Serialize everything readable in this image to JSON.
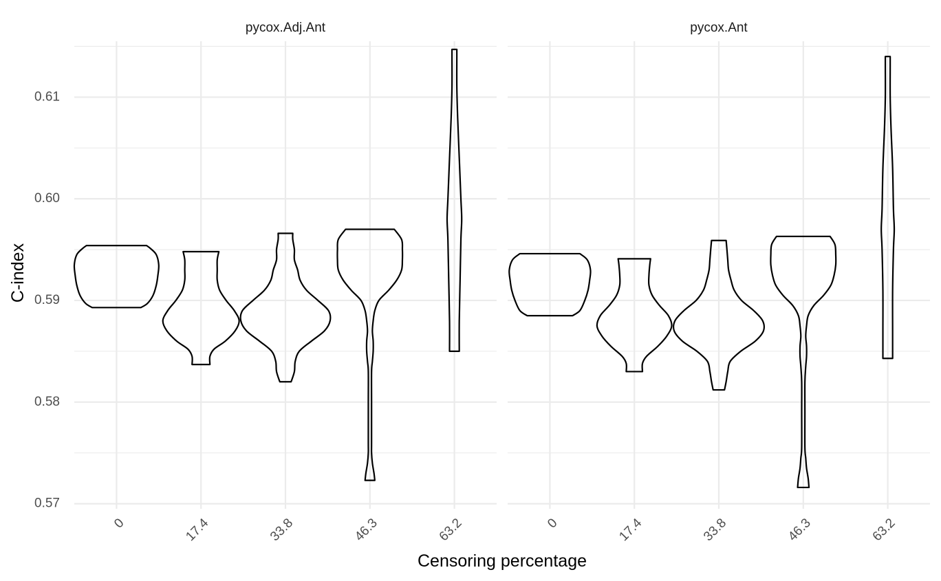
{
  "chart_data": {
    "type": "violin",
    "xlabel": "Censoring percentage",
    "ylabel": "C-index",
    "categories": [
      "0",
      "17.4",
      "33.8",
      "46.3",
      "63.2"
    ],
    "ylim": [
      0.5695,
      0.6155
    ],
    "yticks": [
      0.57,
      0.58,
      0.59,
      0.6,
      0.61
    ],
    "ytick_labels": [
      "0.57",
      "0.58",
      "0.59",
      "0.60",
      "0.61"
    ],
    "grid": true,
    "panels": [
      {
        "title": "pycox.Adj.Ant",
        "violins": [
          {
            "category": "0",
            "profile": [
              [
                0.5893,
                0.3
              ],
              [
                0.5897,
                0.38
              ],
              [
                0.5905,
                0.45
              ],
              [
                0.5915,
                0.49
              ],
              [
                0.5925,
                0.51
              ],
              [
                0.5935,
                0.52
              ],
              [
                0.5945,
                0.49
              ],
              [
                0.5951,
                0.42
              ],
              [
                0.5954,
                0.37
              ]
            ]
          },
          {
            "category": "17.4",
            "profile": [
              [
                0.5837,
                0.11
              ],
              [
                0.5845,
                0.11
              ],
              [
                0.5852,
                0.16
              ],
              [
                0.586,
                0.3
              ],
              [
                0.587,
                0.42
              ],
              [
                0.588,
                0.47
              ],
              [
                0.589,
                0.41
              ],
              [
                0.59,
                0.31
              ],
              [
                0.591,
                0.23
              ],
              [
                0.592,
                0.2
              ],
              [
                0.593,
                0.2
              ],
              [
                0.594,
                0.2
              ],
              [
                0.5948,
                0.22
              ]
            ]
          },
          {
            "category": "33.8",
            "profile": [
              [
                0.582,
                0.07
              ],
              [
                0.583,
                0.11
              ],
              [
                0.584,
                0.12
              ],
              [
                0.585,
                0.17
              ],
              [
                0.586,
                0.32
              ],
              [
                0.587,
                0.48
              ],
              [
                0.588,
                0.55
              ],
              [
                0.589,
                0.53
              ],
              [
                0.59,
                0.4
              ],
              [
                0.591,
                0.26
              ],
              [
                0.592,
                0.18
              ],
              [
                0.593,
                0.15
              ],
              [
                0.594,
                0.11
              ],
              [
                0.595,
                0.11
              ],
              [
                0.596,
                0.09
              ],
              [
                0.5966,
                0.09
              ]
            ]
          },
          {
            "category": "46.3",
            "profile": [
              [
                0.5723,
                0.06
              ],
              [
                0.573,
                0.05
              ],
              [
                0.574,
                0.03
              ],
              [
                0.575,
                0.02
              ],
              [
                0.576,
                0.02
              ],
              [
                0.58,
                0.02
              ],
              [
                0.583,
                0.02
              ],
              [
                0.584,
                0.03
              ],
              [
                0.585,
                0.04
              ],
              [
                0.586,
                0.04
              ],
              [
                0.587,
                0.03
              ],
              [
                0.588,
                0.04
              ],
              [
                0.589,
                0.06
              ],
              [
                0.59,
                0.11
              ],
              [
                0.591,
                0.23
              ],
              [
                0.592,
                0.33
              ],
              [
                0.593,
                0.39
              ],
              [
                0.594,
                0.4
              ],
              [
                0.595,
                0.4
              ],
              [
                0.596,
                0.39
              ],
              [
                0.597,
                0.3
              ]
            ]
          },
          {
            "category": "63.2",
            "profile": [
              [
                0.585,
                0.06
              ],
              [
                0.588,
                0.06
              ],
              [
                0.592,
                0.07
              ],
              [
                0.596,
                0.08
              ],
              [
                0.598,
                0.09
              ],
              [
                0.6,
                0.08
              ],
              [
                0.604,
                0.06
              ],
              [
                0.608,
                0.04
              ],
              [
                0.611,
                0.03
              ],
              [
                0.614,
                0.03
              ],
              [
                0.6147,
                0.03
              ]
            ]
          }
        ]
      },
      {
        "title": "pycox.Ant",
        "violins": [
          {
            "category": "0",
            "profile": [
              [
                0.5885,
                0.28
              ],
              [
                0.589,
                0.37
              ],
              [
                0.59,
                0.43
              ],
              [
                0.591,
                0.47
              ],
              [
                0.592,
                0.49
              ],
              [
                0.593,
                0.5
              ],
              [
                0.594,
                0.46
              ],
              [
                0.5946,
                0.37
              ]
            ]
          },
          {
            "category": "17.4",
            "profile": [
              [
                0.583,
                0.1
              ],
              [
                0.5838,
                0.1
              ],
              [
                0.5845,
                0.15
              ],
              [
                0.5855,
                0.29
              ],
              [
                0.5865,
                0.4
              ],
              [
                0.5875,
                0.46
              ],
              [
                0.5885,
                0.42
              ],
              [
                0.5895,
                0.31
              ],
              [
                0.5905,
                0.22
              ],
              [
                0.5915,
                0.18
              ],
              [
                0.5925,
                0.18
              ],
              [
                0.5935,
                0.19
              ],
              [
                0.5941,
                0.2
              ]
            ]
          },
          {
            "category": "33.8",
            "profile": [
              [
                0.5812,
                0.07
              ],
              [
                0.582,
                0.09
              ],
              [
                0.583,
                0.11
              ],
              [
                0.584,
                0.14
              ],
              [
                0.585,
                0.27
              ],
              [
                0.586,
                0.45
              ],
              [
                0.587,
                0.55
              ],
              [
                0.588,
                0.54
              ],
              [
                0.589,
                0.43
              ],
              [
                0.59,
                0.28
              ],
              [
                0.591,
                0.19
              ],
              [
                0.592,
                0.15
              ],
              [
                0.593,
                0.12
              ],
              [
                0.594,
                0.11
              ],
              [
                0.595,
                0.1
              ],
              [
                0.5959,
                0.09
              ]
            ]
          },
          {
            "category": "46.3",
            "profile": [
              [
                0.5716,
                0.07
              ],
              [
                0.5725,
                0.06
              ],
              [
                0.5735,
                0.04
              ],
              [
                0.5745,
                0.03
              ],
              [
                0.5755,
                0.02
              ],
              [
                0.579,
                0.02
              ],
              [
                0.582,
                0.02
              ],
              [
                0.5835,
                0.03
              ],
              [
                0.5845,
                0.04
              ],
              [
                0.5855,
                0.04
              ],
              [
                0.5865,
                0.03
              ],
              [
                0.5875,
                0.04
              ],
              [
                0.5885,
                0.06
              ],
              [
                0.5895,
                0.13
              ],
              [
                0.5905,
                0.25
              ],
              [
                0.5915,
                0.34
              ],
              [
                0.5925,
                0.38
              ],
              [
                0.5935,
                0.4
              ],
              [
                0.5945,
                0.4
              ],
              [
                0.5955,
                0.39
              ],
              [
                0.5963,
                0.33
              ]
            ]
          },
          {
            "category": "63.2",
            "profile": [
              [
                0.5843,
                0.06
              ],
              [
                0.587,
                0.06
              ],
              [
                0.591,
                0.06
              ],
              [
                0.595,
                0.07
              ],
              [
                0.597,
                0.08
              ],
              [
                0.599,
                0.07
              ],
              [
                0.603,
                0.06
              ],
              [
                0.607,
                0.04
              ],
              [
                0.61,
                0.03
              ],
              [
                0.613,
                0.03
              ],
              [
                0.614,
                0.03
              ]
            ]
          }
        ]
      }
    ]
  }
}
